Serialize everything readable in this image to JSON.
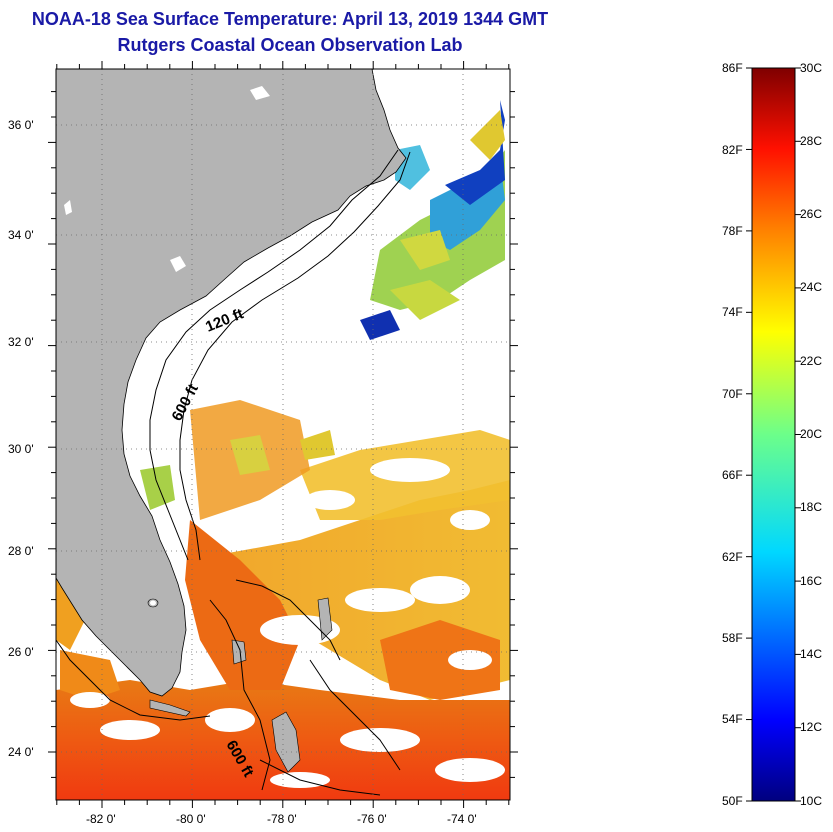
{
  "header": {
    "title": "NOAA-18 Sea Surface Temperature:  April 13, 2019 1344 GMT",
    "subtitle": "Rutgers Coastal Ocean Observation Lab"
  },
  "map": {
    "lat_range": [
      23,
      37
    ],
    "lon_range": [
      -83,
      -73
    ],
    "lat_labels": [
      "24 0'",
      "26 0'",
      "28 0'",
      "30 0'",
      "32 0'",
      "34 0'",
      "36 0'"
    ],
    "lon_labels": [
      "-82 0'",
      "-80 0'",
      "-78 0'",
      "-76 0'",
      "-74 0'"
    ],
    "contour_labels": [
      "120 ft",
      "600 ft",
      "600 ft"
    ],
    "land_color": "#b4b4b4",
    "cloud_color": "#ffffff"
  },
  "colorbar": {
    "fahrenheit_labels": [
      "86F",
      "82F",
      "78F",
      "74F",
      "70F",
      "66F",
      "62F",
      "58F",
      "54F",
      "50F"
    ],
    "celsius_labels": [
      "30C",
      "28C",
      "26C",
      "24C",
      "22C",
      "20C",
      "18C",
      "16C",
      "14C",
      "12C",
      "10C"
    ],
    "range_c": [
      10,
      30
    ]
  }
}
